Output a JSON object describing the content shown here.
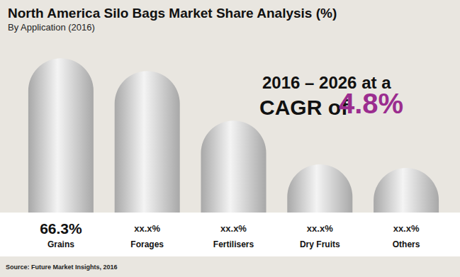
{
  "chart_data": {
    "type": "bar",
    "title": "North America Silo Bags Market Share Analysis (%)",
    "subtitle": "By Application (2016)",
    "categories": [
      "Grains",
      "Forages",
      "Fertilisers",
      "Dry Fruits",
      "Others"
    ],
    "values": [
      66.3,
      60.8,
      39.5,
      20.7,
      19.2
    ],
    "value_labels": [
      "66.3%",
      "xx.x%",
      "xx.x%",
      "xx.x%",
      "xx.x%"
    ],
    "data_labels": true,
    "color": "#a8a8a8",
    "ylim": [
      0,
      70
    ],
    "tick_labels": "x",
    "grid": false,
    "annotations": [
      "2016 – 2026 at a",
      "CAGR of",
      "4.8%"
    ],
    "annotation_color": "#9b2d8f",
    "source": "Source: Future Market Insights, 2016"
  }
}
